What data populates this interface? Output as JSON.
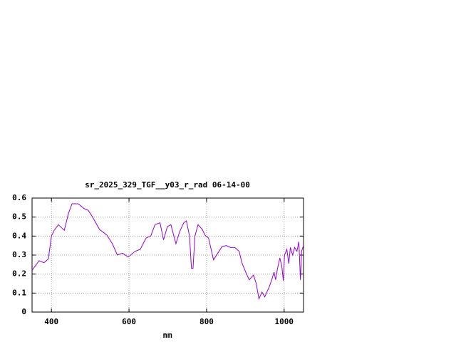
{
  "chart_data": {
    "type": "line",
    "title": "sr_2025_329_TGF__y03_r_rad 06-14-00",
    "xlabel": "nm",
    "x": [
      350,
      368,
      381,
      392,
      400,
      407,
      418,
      433,
      444,
      453,
      469,
      484,
      495,
      506,
      524,
      543,
      557,
      570,
      583,
      598,
      616,
      629,
      644,
      656,
      667,
      680,
      689,
      699,
      708,
      721,
      730,
      741,
      748,
      756,
      761,
      765,
      770,
      778,
      789,
      796,
      805,
      818,
      829,
      840,
      851,
      862,
      873,
      884,
      891,
      901,
      910,
      921,
      928,
      935,
      943,
      950,
      961,
      968,
      974,
      978,
      983,
      989,
      994,
      998,
      1001,
      1007,
      1012,
      1016,
      1022,
      1027,
      1033,
      1038,
      1042,
      1045,
      1049
    ],
    "series": [
      {
        "name": "sr_2025_329_TGF__y03_r_rad",
        "color": "#9400d3",
        "values": [
          0.22,
          0.27,
          0.26,
          0.28,
          0.4,
          0.43,
          0.46,
          0.43,
          0.52,
          0.57,
          0.57,
          0.545,
          0.535,
          0.5,
          0.435,
          0.405,
          0.36,
          0.3,
          0.31,
          0.29,
          0.32,
          0.33,
          0.39,
          0.4,
          0.46,
          0.47,
          0.38,
          0.45,
          0.46,
          0.36,
          0.42,
          0.47,
          0.48,
          0.4,
          0.23,
          0.23,
          0.4,
          0.46,
          0.435,
          0.405,
          0.39,
          0.275,
          0.31,
          0.345,
          0.35,
          0.34,
          0.34,
          0.32,
          0.26,
          0.21,
          0.17,
          0.195,
          0.15,
          0.07,
          0.105,
          0.08,
          0.13,
          0.17,
          0.21,
          0.17,
          0.23,
          0.285,
          0.24,
          0.165,
          0.3,
          0.33,
          0.255,
          0.34,
          0.3,
          0.34,
          0.32,
          0.37,
          0.17,
          0.32,
          0.345
        ]
      }
    ],
    "xlim": [
      350,
      1050
    ],
    "ylim": [
      0,
      0.6
    ],
    "xticks": [
      400,
      600,
      800,
      1000
    ],
    "yticks": [
      0,
      0.1,
      0.2,
      0.3,
      0.4,
      0.5,
      0.6
    ],
    "grid": true
  }
}
